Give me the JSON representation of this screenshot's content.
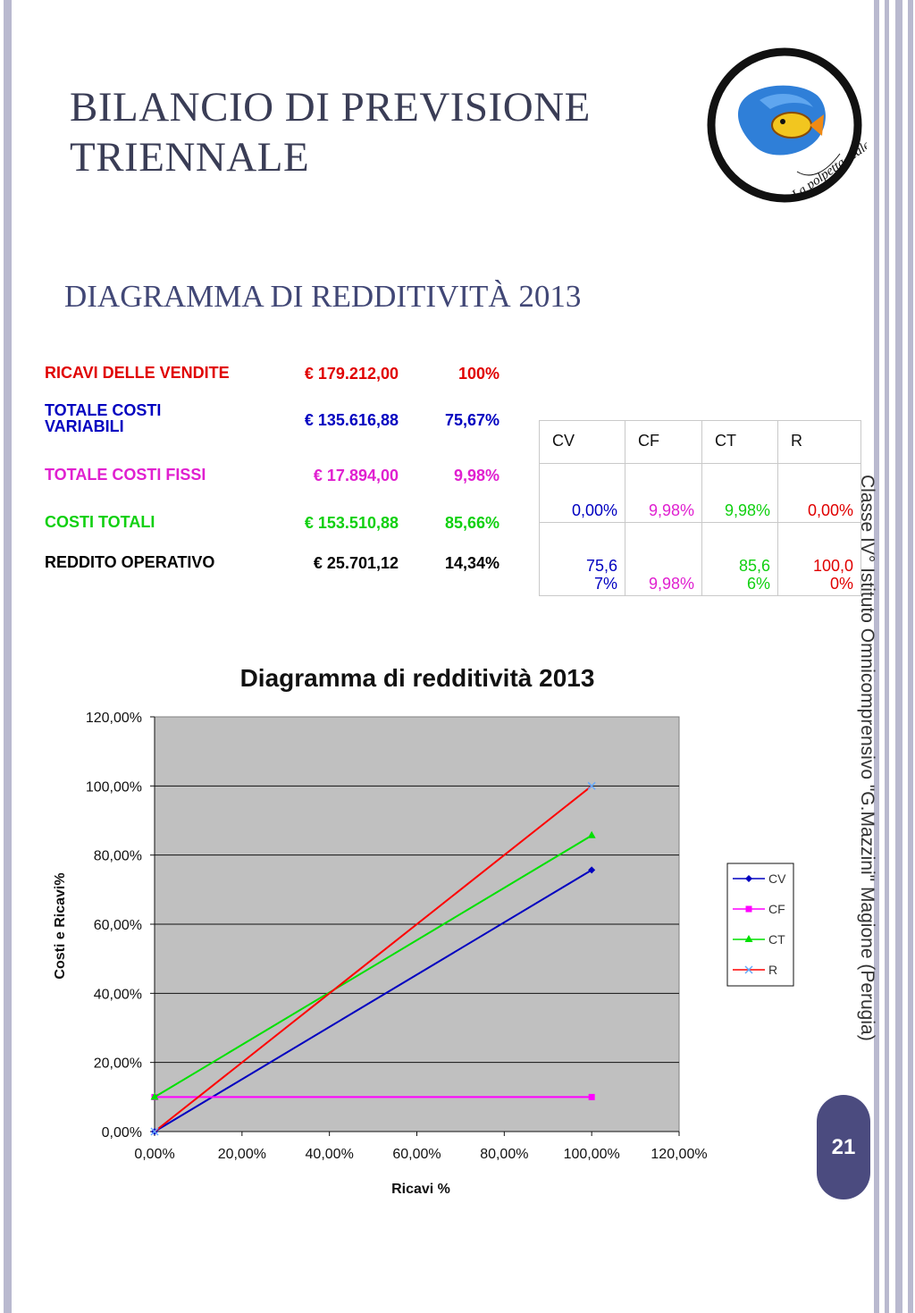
{
  "header": {
    "title_line1": "BILANCIO DI PREVISIONE",
    "title_line2": "TRIENNALE",
    "subtitle": "DIAGRAMMA DI REDDITIVITÀ 2013"
  },
  "logo": {
    "text": "La polpetta reale",
    "icon": "fish-logo-icon"
  },
  "summary": [
    {
      "label": "RICAVI DELLE VENDITE",
      "amount": "€ 179.212,00",
      "pct": "100%",
      "color": "#e00000"
    },
    {
      "label": "TOTALE COSTI VARIABILI",
      "amount": "€ 135.616,88",
      "pct": "75,67%",
      "color": "#0000c0"
    },
    {
      "label": "TOTALE COSTI FISSI",
      "amount": "€ 17.894,00",
      "pct": "9,98%",
      "color": "#e020d0"
    },
    {
      "label": "COSTI TOTALI",
      "amount": "€ 153.510,88",
      "pct": "85,66%",
      "color": "#10d010"
    },
    {
      "label": "REDDITO OPERATIVO",
      "amount": "€ 25.701,12",
      "pct": "14,34%",
      "color": "#000000"
    }
  ],
  "mini_table": {
    "headers": [
      "CV",
      "CF",
      "CT",
      "R"
    ],
    "rows": [
      [
        "0,00%",
        "9,98%",
        "9,98%",
        "0,00%"
      ],
      [
        "75,67%",
        "9,98%",
        "85,66%",
        "100,00%"
      ]
    ],
    "colors": [
      "#0000c0",
      "#e020d0",
      "#10d010",
      "#e00000"
    ]
  },
  "side_text": "Classe IV° Istituto Omnicomprensivo \"G.Mazzini\" Magione (Perugia)",
  "page_number": "21",
  "chart_data": {
    "type": "line",
    "title": "Diagramma di redditività 2013",
    "xlabel": "Ricavi %",
    "ylabel": "Costi e Ricavi%",
    "xlim": [
      0,
      1.2
    ],
    "ylim": [
      0,
      1.2
    ],
    "x_ticks": [
      "0,00%",
      "20,00%",
      "40,00%",
      "60,00%",
      "80,00%",
      "100,00%",
      "120,00%"
    ],
    "y_ticks": [
      "0,00%",
      "20,00%",
      "40,00%",
      "60,00%",
      "80,00%",
      "100,00%",
      "120,00%"
    ],
    "grid": "horizontal",
    "legend": "right",
    "series": [
      {
        "name": "CV",
        "x": [
          0,
          1
        ],
        "y": [
          0,
          0.7567
        ],
        "color": "#0000c0",
        "marker": "diamond"
      },
      {
        "name": "CF",
        "x": [
          0,
          1
        ],
        "y": [
          0.0998,
          0.0998
        ],
        "color": "#ff00ff",
        "marker": "square"
      },
      {
        "name": "CT",
        "x": [
          0,
          1
        ],
        "y": [
          0.0998,
          0.8566
        ],
        "color": "#00e000",
        "marker": "triangle"
      },
      {
        "name": "R",
        "x": [
          0,
          1
        ],
        "y": [
          0,
          1.0
        ],
        "color": "#ff0000",
        "marker": "x"
      }
    ]
  }
}
